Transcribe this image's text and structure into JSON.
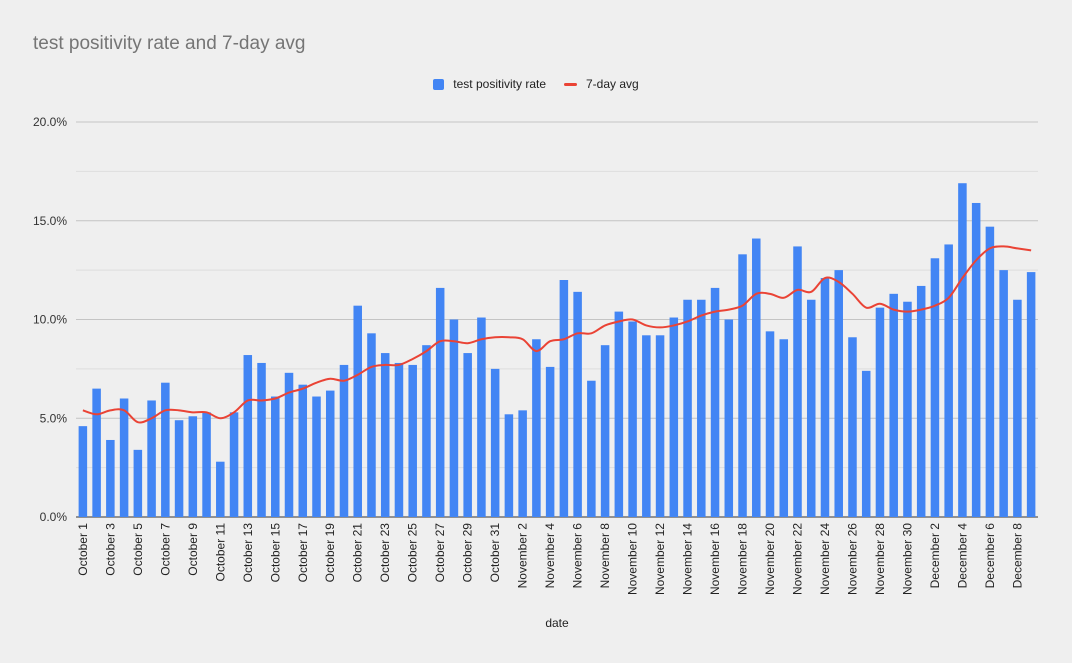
{
  "chart_data": {
    "type": "bar",
    "title": "test positivity rate and 7-day avg",
    "xlabel": "date",
    "ylabel": "",
    "ylim": [
      0,
      20
    ],
    "y_ticks": [
      "0.0%",
      "5.0%",
      "10.0%",
      "15.0%",
      "20.0%"
    ],
    "y_tick_values": [
      0,
      5,
      10,
      15,
      20
    ],
    "grid": true,
    "legend_position": "top",
    "categories": [
      "October 1",
      "October 2",
      "October 3",
      "October 4",
      "October 5",
      "October 6",
      "October 7",
      "October 8",
      "October 9",
      "October 10",
      "October 11",
      "October 12",
      "October 13",
      "October 14",
      "October 15",
      "October 16",
      "October 17",
      "October 18",
      "October 19",
      "October 20",
      "October 21",
      "October 22",
      "October 23",
      "October 24",
      "October 25",
      "October 26",
      "October 27",
      "October 28",
      "October 29",
      "October 30",
      "October 31",
      "November 1",
      "November 2",
      "November 3",
      "November 4",
      "November 5",
      "November 6",
      "November 7",
      "November 8",
      "November 9",
      "November 10",
      "November 11",
      "November 12",
      "November 13",
      "November 14",
      "November 15",
      "November 16",
      "November 17",
      "November 18",
      "November 19",
      "November 20",
      "November 21",
      "November 22",
      "November 23",
      "November 24",
      "November 25",
      "November 26",
      "November 27",
      "November 28",
      "November 29",
      "November 30",
      "December 1",
      "December 2",
      "December 3",
      "December 4",
      "December 5",
      "December 6",
      "December 7",
      "December 8",
      "December 9"
    ],
    "x_tick_labels": [
      "October 1",
      "October 3",
      "October 5",
      "October 7",
      "October 9",
      "October 11",
      "October 13",
      "October 15",
      "October 17",
      "October 19",
      "October 21",
      "October 23",
      "October 25",
      "October 27",
      "October 29",
      "October 31",
      "November 2",
      "November 4",
      "November 6",
      "November 8",
      "November 10",
      "November 12",
      "November 14",
      "November 16",
      "November 18",
      "November 20",
      "November 22",
      "November 24",
      "November 26",
      "November 28",
      "November 30",
      "December 2",
      "December 4",
      "December 6",
      "December 8"
    ],
    "series": [
      {
        "name": "test positivity rate",
        "kind": "bar",
        "color": "#4285f4",
        "values": [
          4.6,
          6.5,
          3.9,
          6.0,
          3.4,
          5.9,
          6.8,
          4.9,
          5.1,
          5.3,
          2.8,
          5.3,
          8.2,
          7.8,
          6.1,
          7.3,
          6.7,
          6.1,
          6.4,
          7.7,
          10.7,
          9.3,
          8.3,
          7.8,
          7.7,
          8.7,
          11.6,
          10.0,
          8.3,
          10.1,
          7.5,
          5.2,
          5.4,
          9.0,
          7.6,
          12.0,
          11.4,
          6.9,
          8.7,
          10.4,
          9.9,
          9.2,
          9.2,
          10.1,
          11.0,
          11.0,
          11.6,
          10.0,
          13.3,
          14.1,
          9.4,
          9.0,
          13.7,
          11.0,
          12.1,
          12.5,
          9.1,
          7.4,
          10.6,
          11.3,
          10.9,
          11.7,
          13.1,
          13.8,
          16.9,
          15.9,
          14.7,
          12.5,
          11.0,
          12.4
        ]
      },
      {
        "name": "7-day avg",
        "kind": "line",
        "color": "#ea4335",
        "values": [
          5.4,
          5.2,
          5.4,
          5.4,
          4.8,
          5.0,
          5.4,
          5.4,
          5.3,
          5.3,
          5.0,
          5.3,
          5.9,
          5.9,
          6.0,
          6.3,
          6.5,
          6.8,
          7.0,
          6.9,
          7.2,
          7.6,
          7.7,
          7.7,
          8.0,
          8.4,
          8.9,
          8.9,
          8.8,
          9.0,
          9.1,
          9.1,
          9.0,
          8.4,
          8.9,
          9.0,
          9.3,
          9.3,
          9.7,
          9.9,
          10.0,
          9.7,
          9.6,
          9.7,
          9.9,
          10.2,
          10.4,
          10.5,
          10.7,
          11.3,
          11.3,
          11.1,
          11.5,
          11.4,
          12.1,
          11.9,
          11.3,
          10.6,
          10.8,
          10.5,
          10.4,
          10.5,
          10.7,
          11.1,
          12.1,
          13.0,
          13.6,
          13.7,
          13.6,
          13.5
        ]
      }
    ]
  }
}
